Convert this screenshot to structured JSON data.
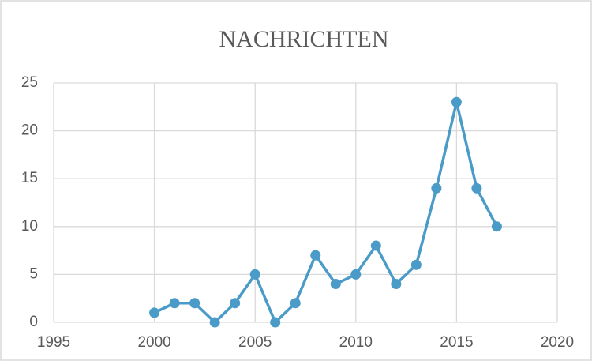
{
  "chart_data": {
    "type": "line",
    "title": "NACHRICHTEN",
    "x": [
      2000,
      2001,
      2002,
      2003,
      2004,
      2005,
      2006,
      2007,
      2008,
      2009,
      2010,
      2011,
      2012,
      2013,
      2014,
      2015,
      2016,
      2017
    ],
    "series": [
      {
        "name": "NACHRICHTEN",
        "color": "#4a9bc7",
        "values": [
          1,
          2,
          2,
          0,
          2,
          5,
          0,
          2,
          7,
          4,
          5,
          8,
          4,
          6,
          14,
          23,
          14,
          10
        ]
      }
    ],
    "xlim": [
      1995,
      2020
    ],
    "xticks": [
      1995,
      2000,
      2005,
      2010,
      2015,
      2020
    ],
    "ylim": [
      0,
      25
    ],
    "yticks": [
      0,
      5,
      10,
      15,
      20,
      25
    ],
    "grid": true
  }
}
